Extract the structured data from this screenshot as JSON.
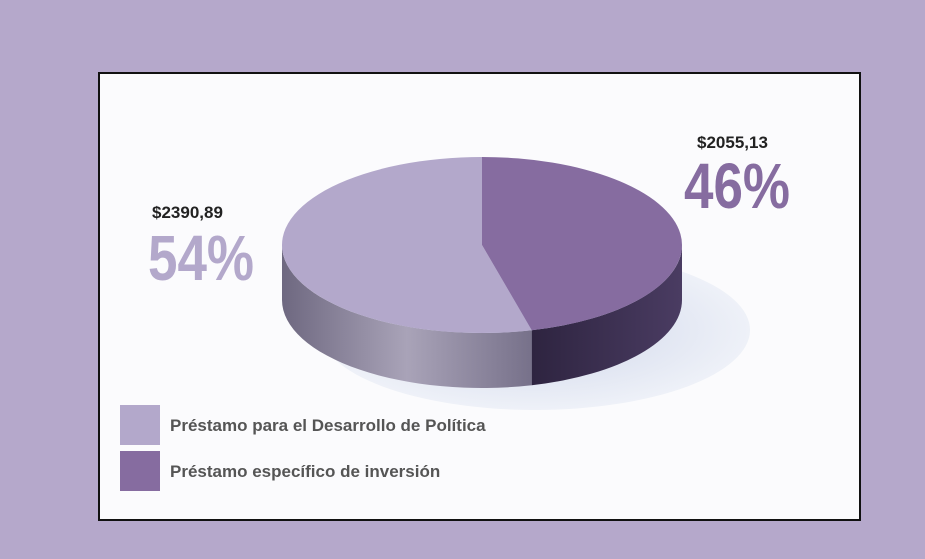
{
  "chart_data": {
    "type": "pie",
    "categories": [
      "Préstamo para el Desarrollo de Política",
      "Préstamo específico de inversión"
    ],
    "values": [
      54,
      46
    ],
    "value_labels": [
      "54%",
      "46%"
    ],
    "amounts": [
      2390.89,
      2055.13
    ],
    "amount_labels": [
      "$2390,89",
      "$2055,13"
    ],
    "colors": [
      "#b3a8cb",
      "#866ca0"
    ]
  }
}
